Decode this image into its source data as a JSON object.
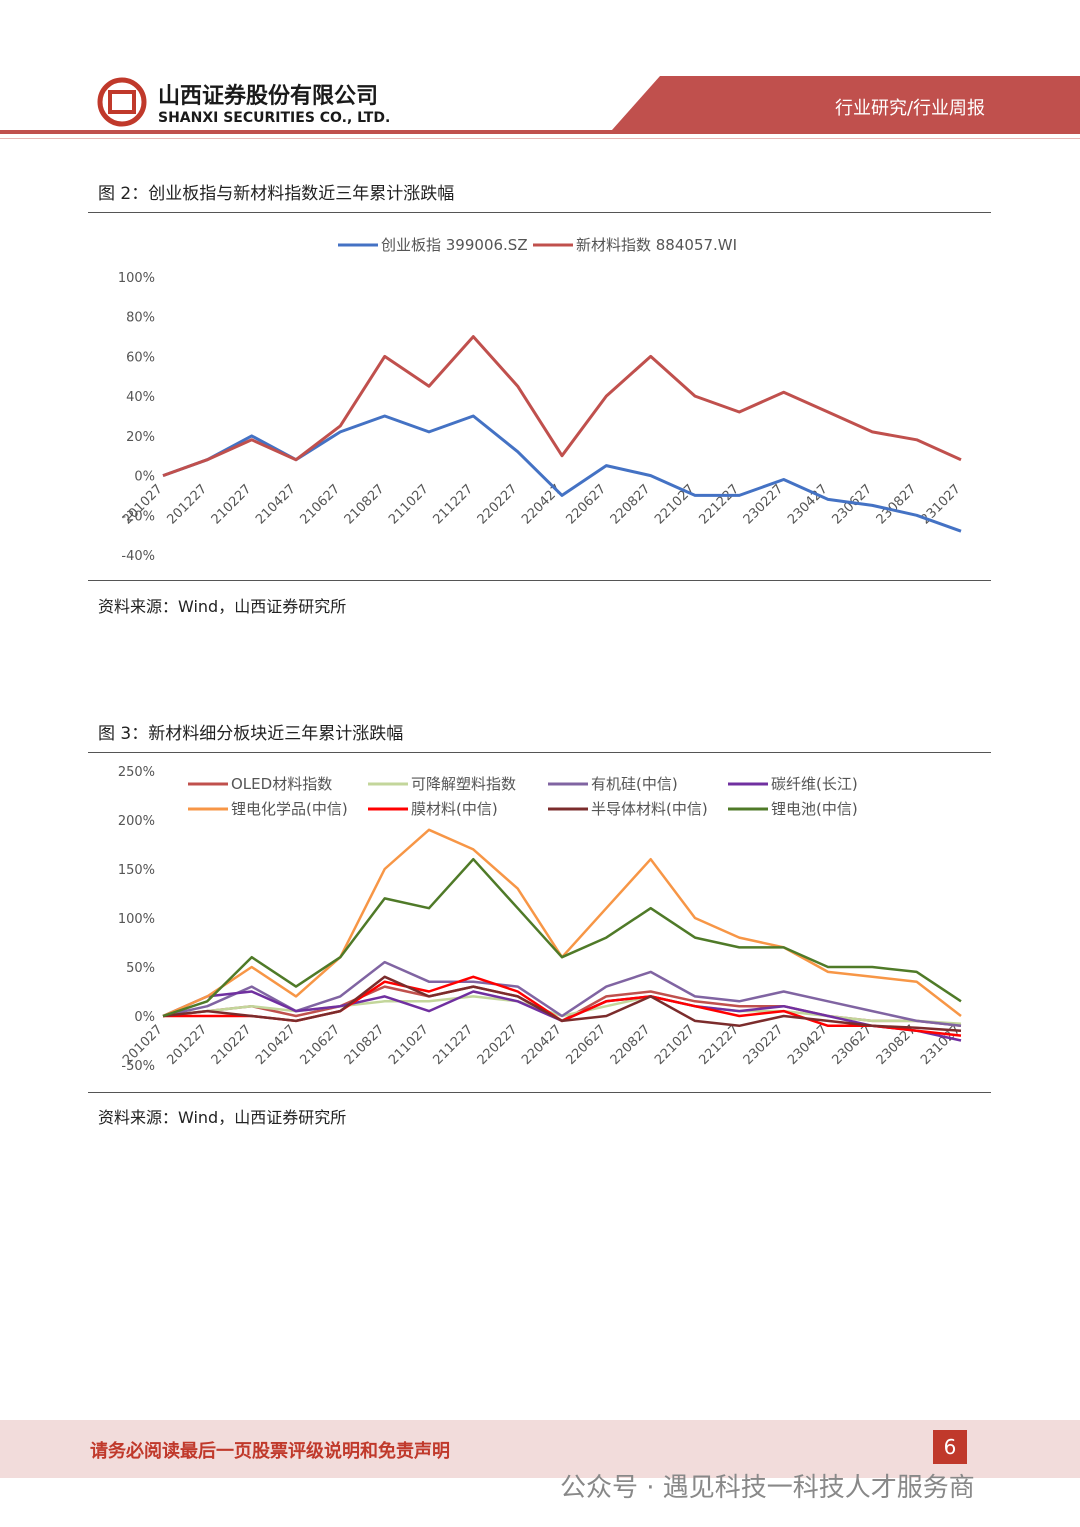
{
  "header": {
    "company_cn": "山西证券股份有限公司",
    "company_en": "SHANXI SECURITIES CO., LTD.",
    "section": "行业研究/行业周报"
  },
  "figures": [
    {
      "title": "图 2：创业板指与新材料指数近三年累计涨跌幅",
      "source": "资料来源：Wind，山西证券研究所"
    },
    {
      "title": "图 3：新材料细分板块近三年累计涨跌幅",
      "source": "资料来源：Wind，山西证券研究所"
    }
  ],
  "chart_data": [
    {
      "type": "line",
      "categories": [
        "201027",
        "201227",
        "210227",
        "210427",
        "210627",
        "210827",
        "211027",
        "211227",
        "220227",
        "220427",
        "220627",
        "220827",
        "221027",
        "221227",
        "230227",
        "230427",
        "230627",
        "230827",
        "231027"
      ],
      "ylim": [
        -40,
        100
      ],
      "yticks": [
        {
          "value": -40,
          "label": "-40%"
        },
        {
          "value": -20,
          "label": "-20%"
        },
        {
          "value": 0,
          "label": "0%"
        },
        {
          "value": 20,
          "label": "20%"
        },
        {
          "value": 40,
          "label": "40%"
        },
        {
          "value": 60,
          "label": "60%"
        },
        {
          "value": 80,
          "label": "80%"
        },
        {
          "value": 100,
          "label": "100%"
        }
      ],
      "series": [
        {
          "name": "创业板指 399006.SZ",
          "color": "#4472c4",
          "values": [
            0,
            8,
            20,
            8,
            22,
            30,
            22,
            30,
            12,
            -10,
            5,
            0,
            -10,
            -10,
            -2,
            -12,
            -15,
            -20,
            -28
          ]
        },
        {
          "name": "新材料指数 884057.WI",
          "color": "#c0504d",
          "values": [
            0,
            8,
            18,
            8,
            25,
            60,
            45,
            70,
            45,
            10,
            40,
            60,
            40,
            32,
            42,
            32,
            22,
            18,
            8
          ]
        }
      ]
    },
    {
      "type": "line",
      "categories": [
        "201027",
        "201227",
        "210227",
        "210427",
        "210627",
        "210827",
        "211027",
        "211227",
        "220227",
        "220427",
        "220627",
        "220827",
        "221027",
        "221227",
        "230227",
        "230427",
        "230627",
        "230827",
        "231027"
      ],
      "ylim": [
        -50,
        250
      ],
      "yticks": [
        {
          "value": -50,
          "label": "-50%"
        },
        {
          "value": 0,
          "label": "0%"
        },
        {
          "value": 50,
          "label": "50%"
        },
        {
          "value": 100,
          "label": "100%"
        },
        {
          "value": 150,
          "label": "150%"
        },
        {
          "value": 200,
          "label": "200%"
        },
        {
          "value": 250,
          "label": "250%"
        }
      ],
      "series": [
        {
          "name": "OLED材料指数",
          "color": "#c0504d",
          "values": [
            0,
            5,
            10,
            0,
            10,
            30,
            20,
            30,
            20,
            -5,
            20,
            25,
            15,
            10,
            10,
            0,
            -5,
            -5,
            -10
          ]
        },
        {
          "name": "可降解塑料指数",
          "color": "#c3d69b",
          "values": [
            0,
            5,
            10,
            5,
            10,
            15,
            15,
            20,
            15,
            0,
            10,
            20,
            10,
            5,
            5,
            0,
            -5,
            -5,
            -8
          ]
        },
        {
          "name": "有机硅(中信)",
          "color": "#8064a2",
          "values": [
            0,
            10,
            30,
            5,
            20,
            55,
            35,
            35,
            30,
            0,
            30,
            45,
            20,
            15,
            25,
            15,
            5,
            -5,
            -10
          ]
        },
        {
          "name": "碳纤维(长江)",
          "color": "#7030a0",
          "values": [
            0,
            20,
            25,
            5,
            10,
            20,
            5,
            25,
            15,
            -5,
            15,
            20,
            10,
            5,
            10,
            0,
            -10,
            -15,
            -25
          ]
        },
        {
          "name": "锂电化学品(中信)",
          "color": "#f79646",
          "values": [
            0,
            20,
            50,
            20,
            60,
            150,
            190,
            170,
            130,
            60,
            110,
            160,
            100,
            80,
            70,
            45,
            40,
            35,
            0
          ]
        },
        {
          "name": "膜材料(中信)",
          "color": "#ff0000",
          "values": [
            0,
            0,
            0,
            -5,
            5,
            35,
            25,
            40,
            25,
            -5,
            15,
            20,
            10,
            0,
            5,
            -10,
            -10,
            -15,
            -20
          ]
        },
        {
          "name": "半导体材料(中信)",
          "color": "#7b2c2c",
          "values": [
            0,
            5,
            0,
            -5,
            5,
            40,
            20,
            30,
            20,
            -5,
            0,
            20,
            -5,
            -10,
            0,
            -5,
            -10,
            -12,
            -15
          ]
        },
        {
          "name": "锂电池(中信)",
          "color": "#4f7a28",
          "values": [
            0,
            15,
            60,
            30,
            60,
            120,
            110,
            160,
            110,
            60,
            80,
            110,
            80,
            70,
            70,
            50,
            50,
            45,
            15
          ]
        }
      ]
    }
  ],
  "footer": {
    "disclaimer": "请务必阅读最后一页股票评级说明和免责声明",
    "page": "6",
    "watermark": "公众号 · 遇见科技一科技人才服务商"
  }
}
